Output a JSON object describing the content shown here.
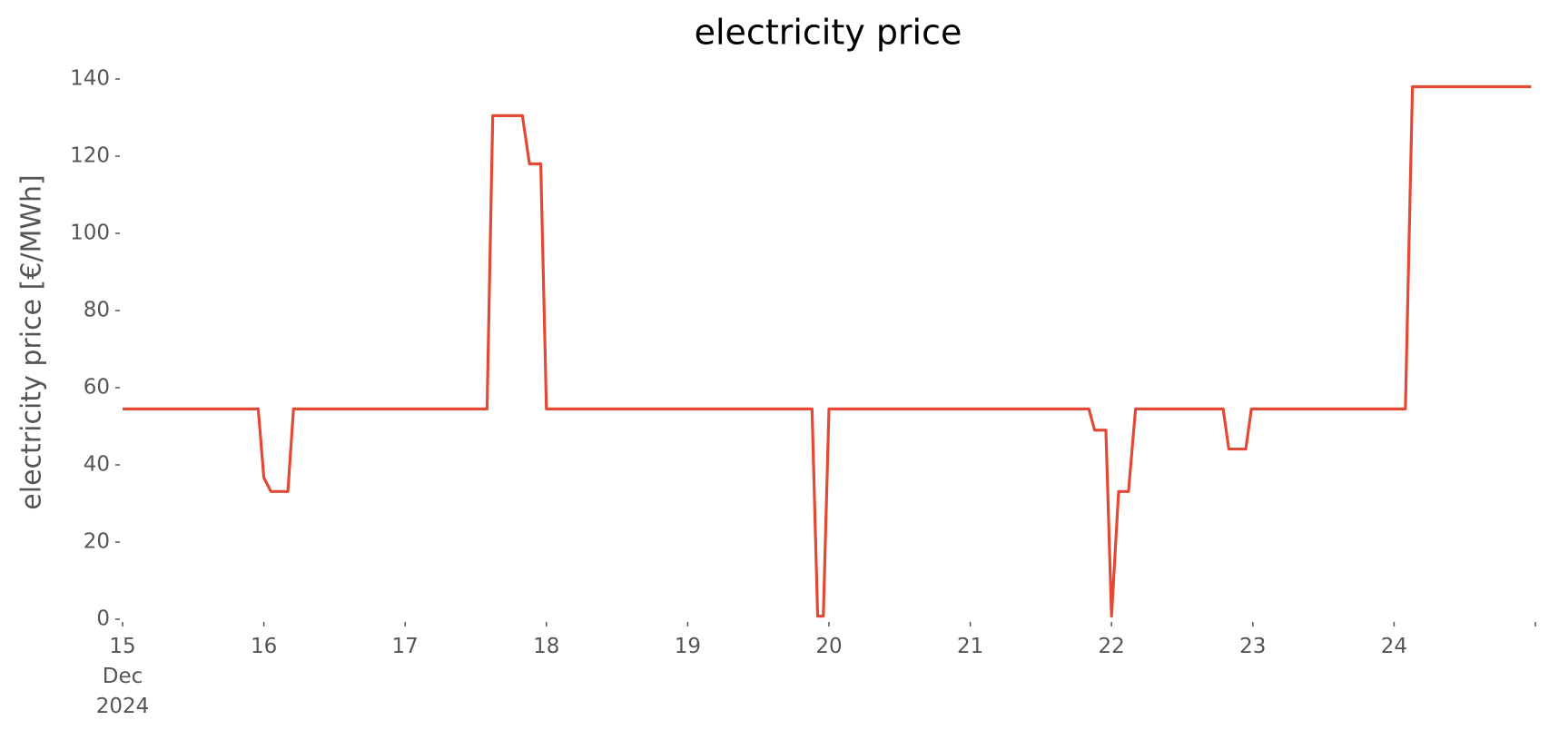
{
  "chart_data": {
    "type": "line",
    "title": "electricity price",
    "ylabel": "electricity price [€/MWh]",
    "x": [
      15,
      15.96,
      16.0,
      16.05,
      16.17,
      16.21,
      17.58,
      17.62,
      17.83,
      17.88,
      17.96,
      18.0,
      19.88,
      19.92,
      19.96,
      20.0,
      21.84,
      21.88,
      21.96,
      22.0,
      22.05,
      22.12,
      22.17,
      22.79,
      22.83,
      22.95,
      22.99,
      24.08,
      24.13,
      24.97
    ],
    "series": [
      {
        "name": "electricity price",
        "color": "#E24A33",
        "values": [
          54.5,
          54.5,
          36.7,
          33.1,
          33.1,
          54.5,
          54.5,
          130.5,
          130.5,
          118,
          118,
          54.5,
          54.5,
          0.8,
          0.8,
          54.5,
          54.5,
          49,
          49,
          0.8,
          33.1,
          33.1,
          54.5,
          54.5,
          44.1,
          44.1,
          54.5,
          54.5,
          138,
          138
        ]
      }
    ],
    "xlim": [
      15,
      25
    ],
    "xticks": [
      {
        "value": 15,
        "label": "15\nDec\n2024"
      },
      16,
      17,
      18,
      19,
      20,
      21,
      22,
      23,
      24,
      {
        "value": 25,
        "label": null
      }
    ],
    "ylim": [
      0,
      140
    ],
    "yticks": [
      0,
      20,
      40,
      60,
      80,
      100,
      120,
      140
    ],
    "grid": false
  }
}
